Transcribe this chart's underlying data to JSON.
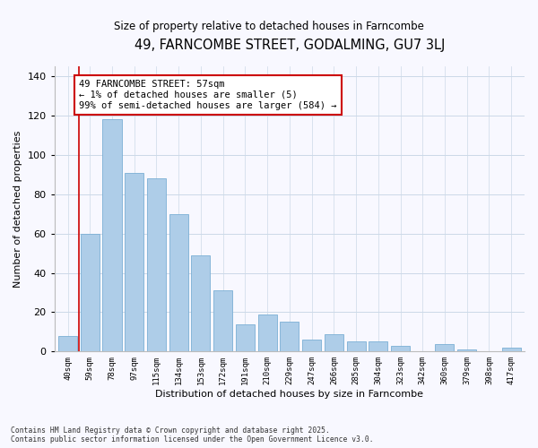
{
  "title": "49, FARNCOMBE STREET, GODALMING, GU7 3LJ",
  "subtitle": "Size of property relative to detached houses in Farncombe",
  "xlabel": "Distribution of detached houses by size in Farncombe",
  "ylabel": "Number of detached properties",
  "bar_labels": [
    "40sqm",
    "59sqm",
    "78sqm",
    "97sqm",
    "115sqm",
    "134sqm",
    "153sqm",
    "172sqm",
    "191sqm",
    "210sqm",
    "229sqm",
    "247sqm",
    "266sqm",
    "285sqm",
    "304sqm",
    "323sqm",
    "342sqm",
    "360sqm",
    "379sqm",
    "398sqm",
    "417sqm"
  ],
  "bar_values": [
    8,
    60,
    118,
    91,
    88,
    70,
    49,
    31,
    14,
    19,
    15,
    6,
    9,
    5,
    5,
    3,
    0,
    4,
    1,
    0,
    2
  ],
  "bar_color": "#aecde8",
  "bar_edge_color": "#7bafd4",
  "annotation_box_text": "49 FARNCOMBE STREET: 57sqm\n← 1% of detached houses are smaller (5)\n99% of semi-detached houses are larger (584) →",
  "annotation_box_color": "#ffffff",
  "annotation_box_edge_color": "#cc0000",
  "vertical_line_color": "#cc0000",
  "ylim": [
    0,
    145
  ],
  "yticks": [
    0,
    20,
    40,
    60,
    80,
    100,
    120,
    140
  ],
  "bg_color": "#f8f8ff",
  "grid_color": "#ccd9e8",
  "footer_line1": "Contains HM Land Registry data © Crown copyright and database right 2025.",
  "footer_line2": "Contains public sector information licensed under the Open Government Licence v3.0."
}
